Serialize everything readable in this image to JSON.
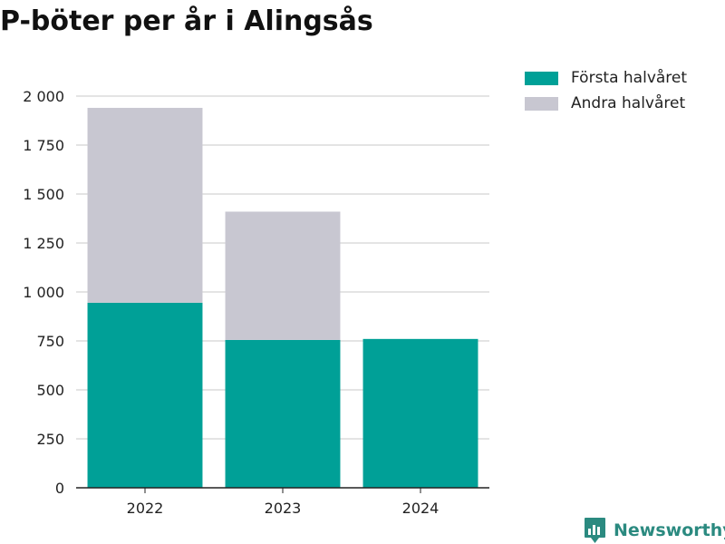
{
  "title": "P-böter per år i Alingsås",
  "brand": {
    "name": "Newsworthy",
    "icon": "newsworthy-logo-icon",
    "color": "#2b8a80"
  },
  "chart_data": {
    "type": "bar",
    "stacked": true,
    "title": "P-böter per år i Alingsås",
    "xlabel": "",
    "ylabel": "",
    "categories": [
      "2022",
      "2023",
      "2024"
    ],
    "series": [
      {
        "name": "Första halvåret",
        "color": "#00a097",
        "values": [
          945,
          755,
          760
        ]
      },
      {
        "name": "Andra halvåret",
        "color": "#c8c7d1",
        "values": [
          995,
          655,
          null
        ]
      }
    ],
    "ylim": [
      0,
      2000
    ],
    "yticks": [
      0,
      250,
      500,
      750,
      1000,
      1250,
      1500,
      1750,
      2000
    ],
    "ytick_labels": [
      "0",
      "250",
      "500",
      "750",
      "1 000",
      "1 250",
      "1 500",
      "1 750",
      "2 000"
    ],
    "grid": true,
    "legend_position": "top-right"
  }
}
